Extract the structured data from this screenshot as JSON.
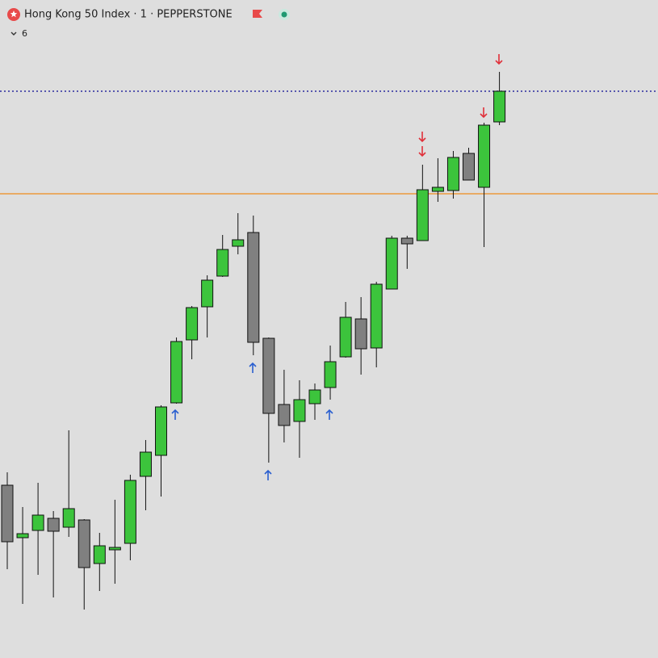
{
  "chart_data": {
    "type": "candlestick",
    "title": "Hong Kong 50 Index · 1 · PEPPERSTONE",
    "indicator_count": 6,
    "ylim": [
      0,
      815
    ],
    "up_color": "#3cc43c",
    "down_color": "#808080",
    "levels": [
      {
        "value": 702,
        "color": "#2b2b9e",
        "style": "dotted"
      },
      {
        "value": 575,
        "color": "#f08a1c",
        "style": "solid"
      }
    ],
    "candles": [
      {
        "open": 214,
        "high": 230,
        "low": 110,
        "close": 144
      },
      {
        "open": 149,
        "high": 187,
        "low": 67,
        "close": 154
      },
      {
        "open": 158,
        "high": 217,
        "low": 103,
        "close": 177
      },
      {
        "open": 173,
        "high": 182,
        "low": 75,
        "close": 157
      },
      {
        "open": 162,
        "high": 282,
        "low": 150,
        "close": 185
      },
      {
        "open": 171,
        "high": 172,
        "low": 60,
        "close": 112
      },
      {
        "open": 117,
        "high": 155,
        "low": 83,
        "close": 139
      },
      {
        "open": 134,
        "high": 196,
        "low": 92,
        "close": 137
      },
      {
        "open": 142,
        "high": 227,
        "low": 121,
        "close": 220
      },
      {
        "open": 225,
        "high": 270,
        "low": 183,
        "close": 255
      },
      {
        "open": 251,
        "high": 313,
        "low": 200,
        "close": 311
      },
      {
        "open": 316,
        "high": 397,
        "low": 315,
        "close": 392
      },
      {
        "open": 394,
        "high": 436,
        "low": 370,
        "close": 434
      },
      {
        "open": 435,
        "high": 474,
        "low": 397,
        "close": 468
      },
      {
        "open": 473,
        "high": 524,
        "low": 472,
        "close": 506
      },
      {
        "open": 510,
        "high": 551,
        "low": 500,
        "close": 518
      },
      {
        "open": 527,
        "high": 548,
        "low": 375,
        "close": 391
      },
      {
        "open": 396,
        "high": 397,
        "low": 242,
        "close": 303
      },
      {
        "open": 314,
        "high": 357,
        "low": 267,
        "close": 288
      },
      {
        "open": 293,
        "high": 344,
        "low": 248,
        "close": 320
      },
      {
        "open": 315,
        "high": 340,
        "low": 295,
        "close": 332
      },
      {
        "open": 335,
        "high": 387,
        "low": 320,
        "close": 367
      },
      {
        "open": 373,
        "high": 441,
        "low": 372,
        "close": 422
      },
      {
        "open": 420,
        "high": 447,
        "low": 351,
        "close": 383
      },
      {
        "open": 384,
        "high": 466,
        "low": 360,
        "close": 463
      },
      {
        "open": 457,
        "high": 523,
        "low": 457,
        "close": 520
      },
      {
        "open": 520,
        "high": 523,
        "low": 482,
        "close": 513
      },
      {
        "open": 517,
        "high": 611,
        "low": 517,
        "close": 580
      },
      {
        "open": 578,
        "high": 619,
        "low": 565,
        "close": 583
      },
      {
        "open": 579,
        "high": 628,
        "low": 569,
        "close": 620
      },
      {
        "open": 625,
        "high": 632,
        "low": 592,
        "close": 592
      },
      {
        "open": 583,
        "high": 663,
        "low": 509,
        "close": 660
      },
      {
        "open": 664,
        "high": 726,
        "low": 660,
        "close": 702
      }
    ]
  }
}
